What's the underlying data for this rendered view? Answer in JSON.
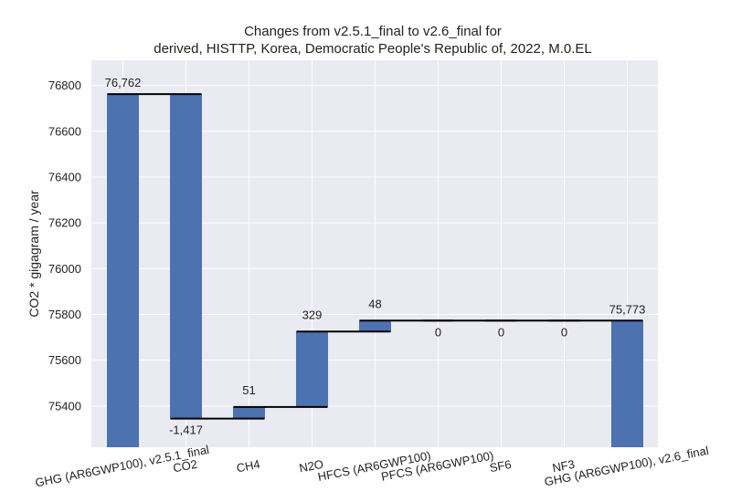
{
  "chart_data": {
    "type": "bar",
    "subtype": "waterfall",
    "title_line1": "Changes from v2.5.1_final to v2.6_final for",
    "title_line2": "derived, HISTTP, Korea, Democratic People's Republic of, 2022, M.0.EL",
    "xlabel": "",
    "ylabel": "CO2 * gigagram / year",
    "ylim": [
      75220,
      76910
    ],
    "yticks": [
      75400,
      75600,
      75800,
      76000,
      76200,
      76400,
      76600,
      76800
    ],
    "grid": true,
    "bar_color": "#4c72b0",
    "background_color": "#eaeaf2",
    "categories": [
      "GHG (AR6GWP100), v2.5.1_final",
      "CO2",
      "CH4",
      "N2O",
      "HFCS (AR6GWP100)",
      "PFCS (AR6GWP100)",
      "SF6",
      "NF3",
      "GHG (AR6GWP100), v2.6_final"
    ],
    "bars": [
      {
        "kind": "total",
        "start": 0,
        "end": 76762,
        "label": "76,762"
      },
      {
        "kind": "delta",
        "start": 76762,
        "end": 75345,
        "label": "-1,417"
      },
      {
        "kind": "delta",
        "start": 75345,
        "end": 75396,
        "label": "51"
      },
      {
        "kind": "delta",
        "start": 75396,
        "end": 75725,
        "label": "329"
      },
      {
        "kind": "delta",
        "start": 75725,
        "end": 75773,
        "label": "48"
      },
      {
        "kind": "delta",
        "start": 75773,
        "end": 75773,
        "label": "0"
      },
      {
        "kind": "delta",
        "start": 75773,
        "end": 75773,
        "label": "0"
      },
      {
        "kind": "delta",
        "start": 75773,
        "end": 75773,
        "label": "0"
      },
      {
        "kind": "total",
        "start": 0,
        "end": 75773,
        "label": "75,773"
      }
    ]
  }
}
